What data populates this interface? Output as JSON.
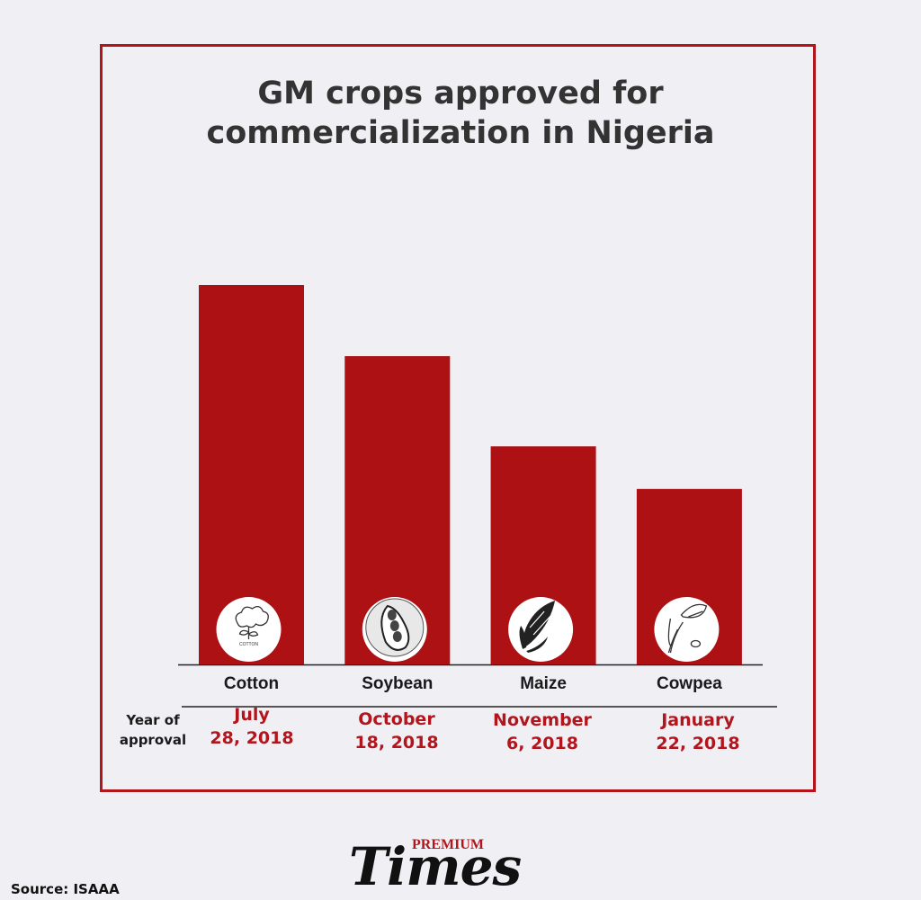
{
  "title_lines": [
    "GM crops approved for",
    "commercialization in Nigeria"
  ],
  "row_label_lines": [
    "Year of",
    "approval"
  ],
  "source": "Source: ISAAA",
  "logo": {
    "top": "PREMIUM",
    "main": "Times"
  },
  "colors": {
    "bar": "#ad1114",
    "frame": "#b3151c",
    "date": "#b3151c",
    "background": "#efeff4"
  },
  "chart_data": {
    "type": "bar",
    "title": "GM crops approved for commercialization in Nigeria",
    "xlabel": "",
    "ylabel": "",
    "categories": [
      "Cotton",
      "Soybean",
      "Maize",
      "Cowpea"
    ],
    "values": [
      4,
      3.25,
      2.3,
      1.85
    ],
    "icons": [
      "cotton-icon",
      "soybean-icon",
      "maize-icon",
      "cowpea-icon"
    ],
    "icon_texts": [
      "COTTON",
      "",
      "",
      ""
    ],
    "dates": [
      [
        "July",
        "28, 2018"
      ],
      [
        "October",
        "18, 2018"
      ],
      [
        "November",
        "6, 2018"
      ],
      [
        "January",
        "22, 2018"
      ]
    ],
    "ylim": [
      0,
      4
    ],
    "grid": false,
    "legend": "none"
  }
}
